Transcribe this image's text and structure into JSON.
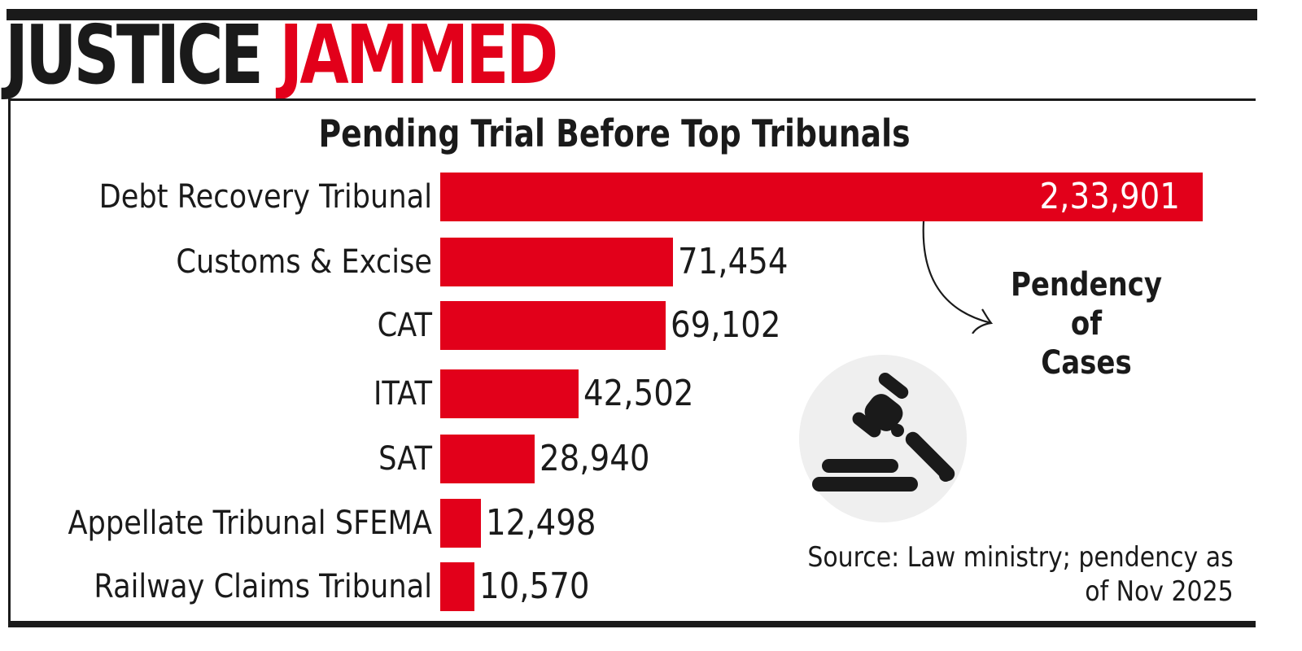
{
  "headline": {
    "word1": "JUSTICE",
    "word2": "JAMMED"
  },
  "subtitle": "Pending Trial Before Top Tribunals",
  "callout": {
    "line1": "Pendency of",
    "line2": "Cases"
  },
  "source": {
    "line1": "Source: Law ministry; pendency as",
    "line2": "of Nov 2025"
  },
  "icons": {
    "main": "gavel-icon",
    "pointer": "curved-arrow-icon"
  },
  "colors": {
    "bar": "#e2001a",
    "headline_accent": "#e2001a",
    "text": "#1a1a1a",
    "icon_bg": "#efefef"
  },
  "rows": [
    {
      "label": "Debt Recovery Tribunal",
      "value": "2,33,901"
    },
    {
      "label": "Customs & Excise",
      "value": "71,454"
    },
    {
      "label": "CAT",
      "value": "69,102"
    },
    {
      "label": "ITAT",
      "value": "42,502"
    },
    {
      "label": "SAT",
      "value": "28,940"
    },
    {
      "label": "Appellate Tribunal SFEMA",
      "value": "12,498"
    },
    {
      "label": "Railway Claims Tribunal",
      "value": "10,570"
    }
  ],
  "chart_data": {
    "type": "bar",
    "orientation": "horizontal",
    "title": "Pending Trial Before Top Tribunals",
    "supertitle": "JUSTICE JAMMED",
    "categories": [
      "Debt Recovery Tribunal",
      "Customs & Excise",
      "CAT",
      "ITAT",
      "SAT",
      "Appellate Tribunal SFEMA",
      "Railway Claims Tribunal"
    ],
    "values": [
      233901,
      71454,
      69102,
      42502,
      28940,
      12498,
      10570
    ],
    "value_labels": [
      "2,33,901",
      "71,454",
      "69,102",
      "42,502",
      "28,940",
      "12,498",
      "10,570"
    ],
    "xlabel": "",
    "ylabel": "",
    "annotations": [
      "Pendency of Cases",
      "Source: Law ministry; pendency as of Nov 2025"
    ],
    "grid": false,
    "legend": null
  }
}
